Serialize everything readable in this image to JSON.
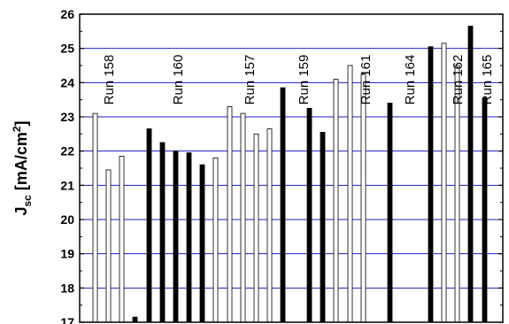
{
  "chart_data": {
    "type": "bar",
    "title": "",
    "xlabel": "",
    "ylabel": {
      "main": "J",
      "sub": "sc",
      "unit_open": " [mA/cm",
      "unit_sup": "2",
      "unit_close": "]"
    },
    "ylim": [
      17,
      26
    ],
    "yticks": [
      17,
      18,
      19,
      20,
      21,
      22,
      23,
      24,
      25,
      26
    ],
    "grid": "horizontal",
    "grid_color": "#2020c0",
    "fill_colors": {
      "open": "#ffffff",
      "filled": "#000000"
    },
    "runs": [
      "Run 158",
      "Run 160",
      "Run 157",
      "Run 159",
      "Run 161",
      "Run 164",
      "Run 162",
      "Run 165"
    ],
    "bars": [
      {
        "value": 23.1,
        "fill": "open"
      },
      {
        "value": 21.45,
        "fill": "open"
      },
      {
        "value": 21.85,
        "fill": "open"
      },
      {
        "value": 17.15,
        "fill": "filled"
      },
      {
        "value": 22.65,
        "fill": "filled"
      },
      {
        "value": 22.25,
        "fill": "filled"
      },
      {
        "value": 22.0,
        "fill": "filled"
      },
      {
        "value": 21.95,
        "fill": "filled"
      },
      {
        "value": 21.6,
        "fill": "filled"
      },
      {
        "value": 21.8,
        "fill": "open"
      },
      {
        "value": 23.3,
        "fill": "open"
      },
      {
        "value": 23.1,
        "fill": "open"
      },
      {
        "value": 22.5,
        "fill": "open"
      },
      {
        "value": 22.65,
        "fill": "open"
      },
      {
        "value": 23.85,
        "fill": "filled"
      },
      {
        "value": 23.25,
        "fill": "filled"
      },
      {
        "value": 22.55,
        "fill": "filled"
      },
      {
        "value": 24.1,
        "fill": "open"
      },
      {
        "value": 24.5,
        "fill": "open"
      },
      {
        "value": 24.25,
        "fill": "open"
      },
      {
        "value": 23.4,
        "fill": "filled"
      },
      {
        "value": 25.05,
        "fill": "filled"
      },
      {
        "value": 25.15,
        "fill": "open"
      },
      {
        "value": 24.5,
        "fill": "open"
      },
      {
        "value": 25.65,
        "fill": "filled"
      },
      {
        "value": 23.55,
        "fill": "filled"
      }
    ]
  }
}
